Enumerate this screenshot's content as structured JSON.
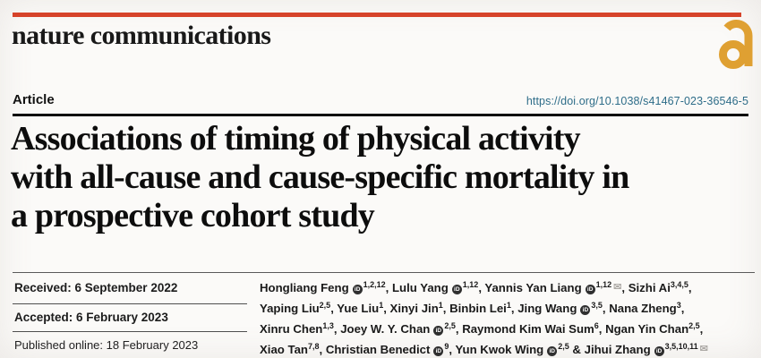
{
  "masthead": {
    "brand": "nature communications",
    "accent_color": "#d6432a",
    "oa_icon_color": "#dfa032"
  },
  "header": {
    "article_label": "Article",
    "doi": "https://doi.org/10.1038/s41467-023-36546-5",
    "doi_color": "#2e6d89"
  },
  "title": {
    "full": "Associations of timing of physical activity with all-cause and cause-specific mortality in a prospective cohort study",
    "lines": [
      "Associations of timing of physical activity",
      "with all-cause and cause-specific mortality in",
      "a prospective cohort study"
    ]
  },
  "dates": {
    "received": "Received: 6 September 2022",
    "accepted": "Accepted: 6 February 2023",
    "published": "Published online: 18 February 2023"
  },
  "authors": {
    "orcid_icon": "iD",
    "email_icon": "✉",
    "lines": [
      [
        {
          "name": "Hongliang Feng",
          "orcid": true,
          "sup": "1,2,12",
          "trail": ", "
        },
        {
          "name": "Lulu Yang",
          "orcid": true,
          "sup": "1,12",
          "trail": ", "
        },
        {
          "name": "Yannis Yan Liang",
          "orcid": true,
          "sup": "1,12",
          "mail": true,
          "trail": ", "
        },
        {
          "name": "Sizhi Ai",
          "sup": "3,4,5",
          "trail": ","
        }
      ],
      [
        {
          "name": "Yaping Liu",
          "sup": "2,5",
          "trail": ", "
        },
        {
          "name": "Yue Liu",
          "sup": "1",
          "trail": ", "
        },
        {
          "name": "Xinyi Jin",
          "sup": "1",
          "trail": ", "
        },
        {
          "name": "Binbin Lei",
          "sup": "1",
          "trail": ", "
        },
        {
          "name": "Jing Wang",
          "orcid": true,
          "sup": "3,5",
          "trail": ", "
        },
        {
          "name": "Nana Zheng",
          "sup": "3",
          "trail": ","
        }
      ],
      [
        {
          "name": "Xinru Chen",
          "sup": "1,3",
          "trail": ", "
        },
        {
          "name": "Joey W. Y. Chan",
          "orcid": true,
          "sup": "2,5",
          "trail": ", "
        },
        {
          "name": "Raymond Kim Wai Sum",
          "sup": "6",
          "trail": ", "
        },
        {
          "name": "Ngan Yin Chan",
          "sup": "2,5",
          "trail": ","
        }
      ],
      [
        {
          "name": "Xiao Tan",
          "sup": "7,8",
          "trail": ", "
        },
        {
          "name": "Christian Benedict",
          "orcid": true,
          "sup": "9",
          "trail": ", "
        },
        {
          "name": "Yun Kwok Wing",
          "orcid": true,
          "sup": "2,5",
          "trail": " & "
        },
        {
          "name": "Jihui Zhang",
          "orcid": true,
          "sup": "3,5,10,11",
          "mail": true,
          "trail": ""
        }
      ]
    ]
  }
}
